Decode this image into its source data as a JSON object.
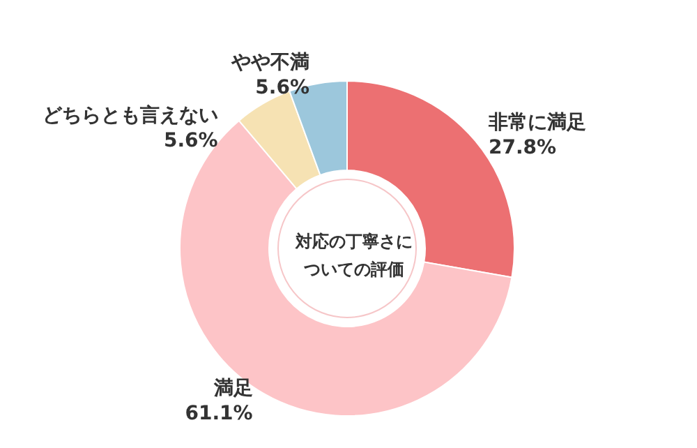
{
  "chart_data": {
    "type": "donut",
    "title": "対応の丁寧さについての評価",
    "categories": [
      "非常に満足",
      "満足",
      "どちらとも言えない",
      "やや不満"
    ],
    "values": [
      27.8,
      61.1,
      5.6,
      5.6
    ],
    "colors": [
      "#ec7072",
      "#fdc4c7",
      "#f6e2b3",
      "#9cc7dc"
    ],
    "value_labels": [
      "27.8%",
      "61.1%",
      "5.6%",
      "5.6%"
    ],
    "legend": false
  }
}
